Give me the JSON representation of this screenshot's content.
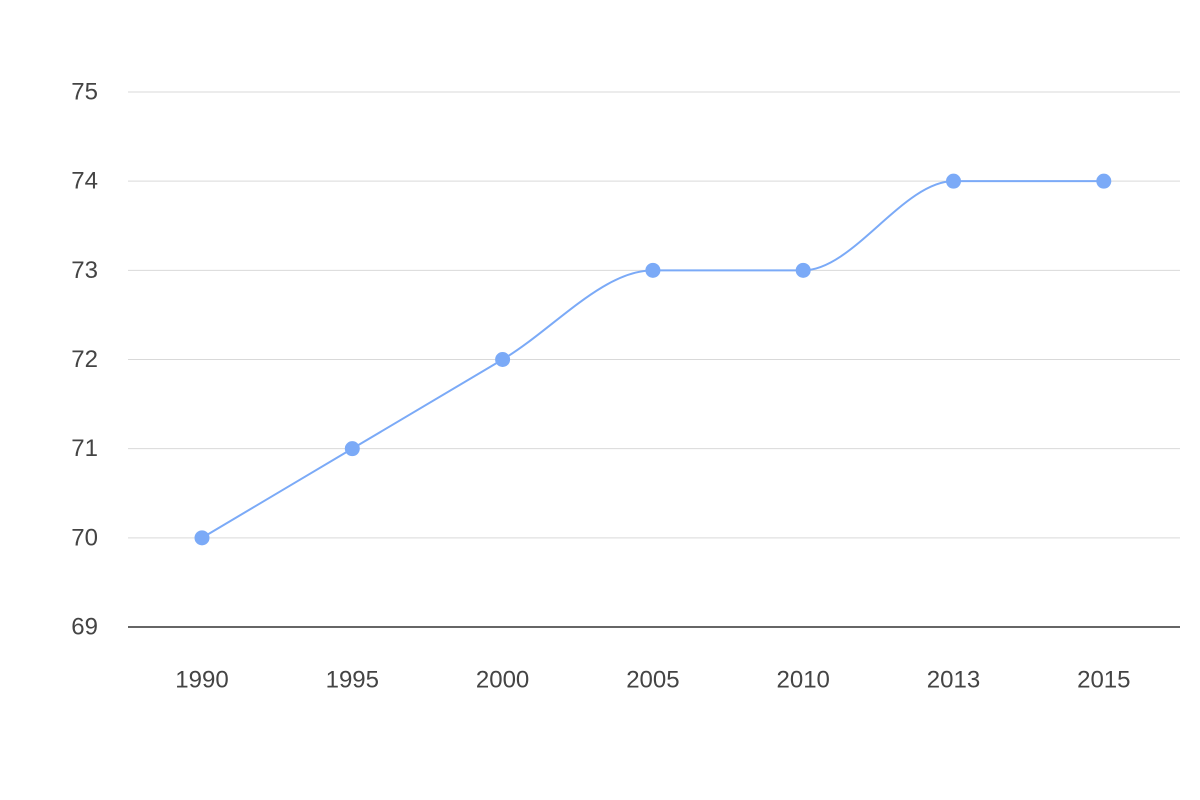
{
  "chart_data": {
    "type": "line",
    "title": "",
    "xlabel": "",
    "ylabel": "",
    "categories": [
      "1990",
      "1995",
      "2000",
      "2005",
      "2010",
      "2013",
      "2015"
    ],
    "y_ticks": [
      "69",
      "70",
      "71",
      "72",
      "73",
      "74",
      "75"
    ],
    "ylim": [
      69,
      75
    ],
    "grid": true,
    "legend": "none",
    "smooth": true,
    "series": [
      {
        "color": "#7baaf7",
        "values": [
          70,
          71,
          72,
          73,
          73,
          74,
          74
        ]
      }
    ]
  }
}
